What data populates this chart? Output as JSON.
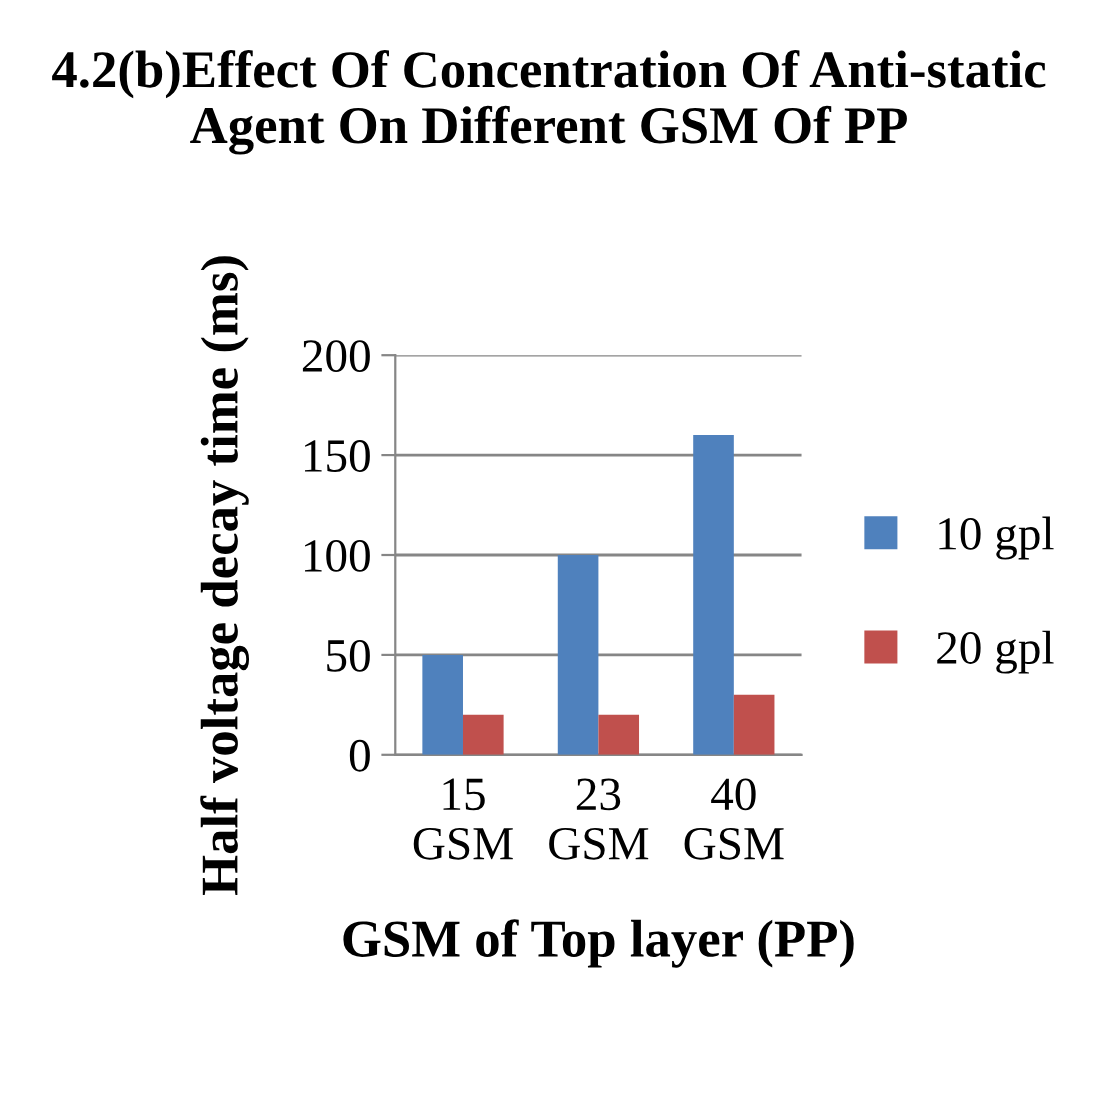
{
  "chart_data": {
    "type": "bar",
    "title": "4.2(b)Effect Of Concentration Of Anti-static Agent On Different GSM Of PP",
    "xlabel": "GSM of Top layer (PP)",
    "ylabel": "Half voltage decay time (ms)",
    "categories": [
      "15\nGSM",
      "23\nGSM",
      "40\nGSM"
    ],
    "series": [
      {
        "name": "10 gpl",
        "color": "#4f81bd",
        "values": [
          50,
          100,
          160
        ]
      },
      {
        "name": "20 gpl",
        "color": "#c0504d",
        "values": [
          20,
          20,
          30
        ]
      }
    ],
    "ylim": [
      0,
      200
    ],
    "yticks": [
      0,
      50,
      100,
      150,
      200
    ],
    "grid": "y",
    "legend": "right"
  }
}
